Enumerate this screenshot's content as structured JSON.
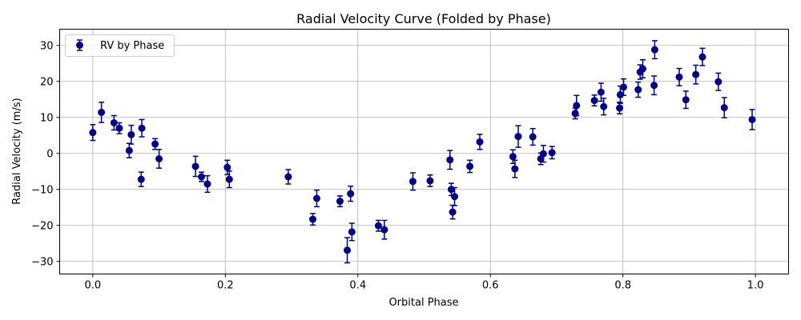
{
  "chart_data": {
    "type": "scatter",
    "title": "Radial Velocity Curve (Folded by Phase)",
    "xlabel": "Orbital Phase",
    "ylabel": "Radial Velocity (m/s)",
    "xlim": [
      -0.05,
      1.05
    ],
    "ylim": [
      -33.5,
      34.5
    ],
    "xticks": [
      0.0,
      0.2,
      0.4,
      0.6,
      0.8,
      1.0
    ],
    "xtick_labels": [
      "0.0",
      "0.2",
      "0.4",
      "0.6",
      "0.8",
      "1.0"
    ],
    "yticks": [
      -30,
      -20,
      -10,
      0,
      10,
      20,
      30
    ],
    "ytick_labels": [
      "−30",
      "−20",
      "−10",
      "0",
      "10",
      "20",
      "30"
    ],
    "grid": true,
    "legend_position": "top-left",
    "series": [
      {
        "name": "RV by Phase",
        "color": "#00008b",
        "points": [
          {
            "x": 0.0,
            "y": 5.8,
            "err": 2.2
          },
          {
            "x": 0.013,
            "y": 11.4,
            "err": 2.8
          },
          {
            "x": 0.032,
            "y": 8.5,
            "err": 2.0
          },
          {
            "x": 0.04,
            "y": 7.0,
            "err": 1.5
          },
          {
            "x": 0.055,
            "y": 0.8,
            "err": 2.0
          },
          {
            "x": 0.058,
            "y": 5.2,
            "err": 2.6
          },
          {
            "x": 0.073,
            "y": -7.2,
            "err": 2.0
          },
          {
            "x": 0.074,
            "y": 7.0,
            "err": 2.4
          },
          {
            "x": 0.094,
            "y": 2.6,
            "err": 1.5
          },
          {
            "x": 0.1,
            "y": -1.5,
            "err": 2.6
          },
          {
            "x": 0.155,
            "y": -3.6,
            "err": 2.8
          },
          {
            "x": 0.164,
            "y": -6.5,
            "err": 1.3
          },
          {
            "x": 0.173,
            "y": -8.5,
            "err": 2.3
          },
          {
            "x": 0.203,
            "y": -3.9,
            "err": 2.0
          },
          {
            "x": 0.206,
            "y": -7.2,
            "err": 2.3
          },
          {
            "x": 0.295,
            "y": -6.5,
            "err": 2.0
          },
          {
            "x": 0.332,
            "y": -18.3,
            "err": 1.6
          },
          {
            "x": 0.338,
            "y": -12.5,
            "err": 2.3
          },
          {
            "x": 0.373,
            "y": -13.3,
            "err": 1.5
          },
          {
            "x": 0.384,
            "y": -26.9,
            "err": 3.5
          },
          {
            "x": 0.389,
            "y": -11.2,
            "err": 2.1
          },
          {
            "x": 0.391,
            "y": -21.8,
            "err": 2.4
          },
          {
            "x": 0.431,
            "y": -20.1,
            "err": 1.5
          },
          {
            "x": 0.44,
            "y": -21.2,
            "err": 2.6
          },
          {
            "x": 0.483,
            "y": -7.8,
            "err": 2.4
          },
          {
            "x": 0.509,
            "y": -7.6,
            "err": 1.6
          },
          {
            "x": 0.539,
            "y": -1.8,
            "err": 2.6
          },
          {
            "x": 0.541,
            "y": -10.0,
            "err": 1.7
          },
          {
            "x": 0.543,
            "y": -16.3,
            "err": 1.9
          },
          {
            "x": 0.546,
            "y": -12.0,
            "err": 2.5
          },
          {
            "x": 0.569,
            "y": -3.6,
            "err": 1.7
          },
          {
            "x": 0.584,
            "y": 3.2,
            "err": 2.1
          },
          {
            "x": 0.634,
            "y": -0.9,
            "err": 1.9
          },
          {
            "x": 0.637,
            "y": -4.3,
            "err": 2.4
          },
          {
            "x": 0.642,
            "y": 4.7,
            "err": 3.0
          },
          {
            "x": 0.664,
            "y": 4.6,
            "err": 2.3
          },
          {
            "x": 0.676,
            "y": -1.5,
            "err": 1.6
          },
          {
            "x": 0.68,
            "y": -0.1,
            "err": 2.3
          },
          {
            "x": 0.693,
            "y": 0.2,
            "err": 1.7
          },
          {
            "x": 0.728,
            "y": 11.1,
            "err": 1.5
          },
          {
            "x": 0.73,
            "y": 13.3,
            "err": 2.8
          },
          {
            "x": 0.757,
            "y": 14.7,
            "err": 1.5
          },
          {
            "x": 0.767,
            "y": 17.0,
            "err": 2.5
          },
          {
            "x": 0.771,
            "y": 13.0,
            "err": 2.3
          },
          {
            "x": 0.795,
            "y": 12.6,
            "err": 1.6
          },
          {
            "x": 0.796,
            "y": 16.3,
            "err": 2.4
          },
          {
            "x": 0.801,
            "y": 18.4,
            "err": 2.3
          },
          {
            "x": 0.823,
            "y": 17.7,
            "err": 2.1
          },
          {
            "x": 0.826,
            "y": 22.6,
            "err": 2.0
          },
          {
            "x": 0.83,
            "y": 23.5,
            "err": 2.5
          },
          {
            "x": 0.847,
            "y": 18.9,
            "err": 2.6
          },
          {
            "x": 0.848,
            "y": 28.8,
            "err": 2.5
          },
          {
            "x": 0.885,
            "y": 21.2,
            "err": 2.4
          },
          {
            "x": 0.895,
            "y": 14.9,
            "err": 2.4
          },
          {
            "x": 0.91,
            "y": 21.9,
            "err": 2.6
          },
          {
            "x": 0.92,
            "y": 26.8,
            "err": 2.4
          },
          {
            "x": 0.944,
            "y": 19.9,
            "err": 2.4
          },
          {
            "x": 0.953,
            "y": 12.7,
            "err": 2.8
          },
          {
            "x": 0.995,
            "y": 9.4,
            "err": 2.8
          }
        ]
      }
    ]
  }
}
